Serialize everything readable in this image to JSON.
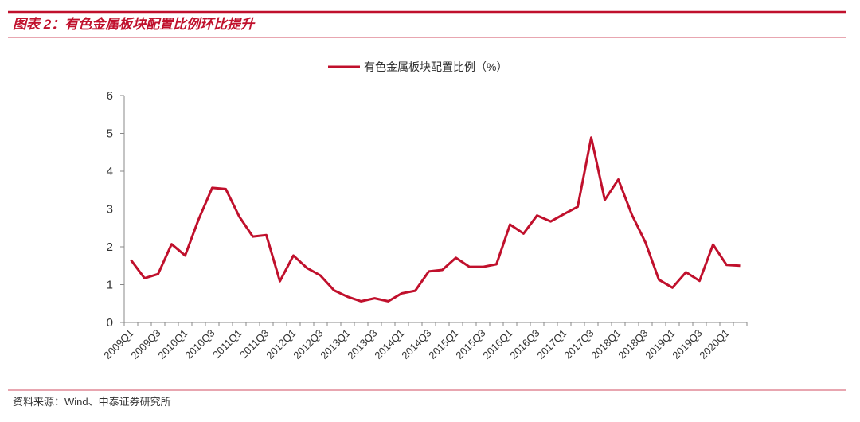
{
  "header": {
    "title": "图表 2：有色金属板块配置比例环比提升"
  },
  "chart_data": {
    "type": "line",
    "categories": [
      "2009Q1",
      null,
      "2009Q3",
      null,
      "2010Q1",
      null,
      "2010Q3",
      null,
      "2011Q1",
      null,
      "2011Q3",
      null,
      "2012Q1",
      null,
      "2012Q3",
      null,
      "2013Q1",
      null,
      "2013Q3",
      null,
      "2014Q1",
      null,
      "2014Q3",
      null,
      "2015Q1",
      null,
      "2015Q3",
      null,
      "2016Q1",
      null,
      "2016Q3",
      null,
      "2017Q1",
      null,
      "2017Q3",
      null,
      "2018Q1",
      null,
      "2018Q3",
      null,
      "2019Q1",
      null,
      "2019Q3",
      null,
      "2020Q1",
      null
    ],
    "series": [
      {
        "name": "有色金属板块配置比例（%）",
        "color": "#c0102c",
        "values": [
          1.65,
          1.17,
          1.28,
          2.07,
          1.77,
          2.73,
          3.56,
          3.53,
          2.8,
          2.27,
          2.31,
          1.09,
          1.77,
          1.44,
          1.24,
          0.85,
          0.68,
          0.56,
          0.64,
          0.56,
          0.77,
          0.84,
          1.35,
          1.39,
          1.71,
          1.47,
          1.47,
          1.54,
          2.59,
          2.35,
          2.83,
          2.67,
          2.87,
          3.06,
          4.89,
          3.24,
          3.78,
          2.85,
          2.12,
          1.13,
          0.92,
          1.33,
          1.1,
          2.06,
          1.52,
          1.5
        ]
      }
    ],
    "ylim": [
      0,
      6
    ],
    "yticks": [
      0,
      1,
      2,
      3,
      4,
      5,
      6
    ],
    "legend": "top"
  },
  "footer": {
    "source": "资料来源：Wind、中泰证券研究所"
  }
}
